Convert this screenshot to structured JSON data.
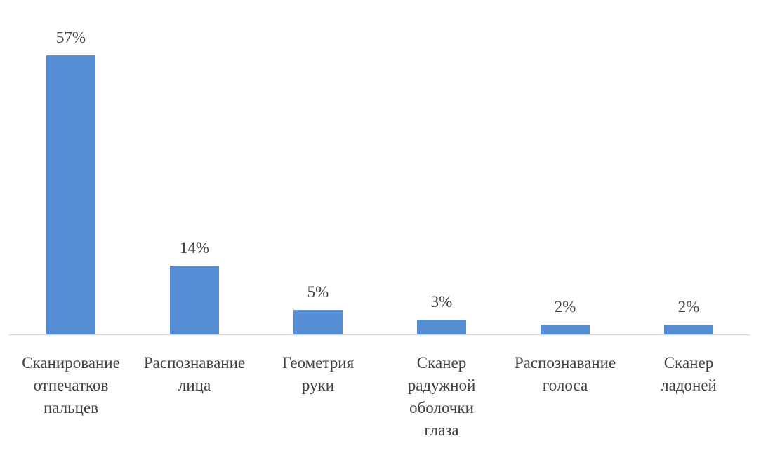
{
  "chart_data": {
    "type": "bar",
    "categories": [
      [
        "Сканирование",
        "отпечатков",
        "пальцев"
      ],
      [
        "Распознавание",
        "лица"
      ],
      [
        "Геометрия",
        "руки"
      ],
      [
        "Сканер",
        "радужной",
        "оболочки",
        "глаза"
      ],
      [
        "Распознавание",
        "голоса"
      ],
      [
        "Сканер",
        "ладоней"
      ]
    ],
    "values": [
      57,
      14,
      5,
      3,
      2,
      2
    ],
    "data_labels": [
      "57%",
      "14%",
      "5%",
      "3%",
      "2%",
      "2%"
    ],
    "title": "",
    "xlabel": "",
    "ylabel": "",
    "ylim": [
      0,
      57
    ],
    "grid": false,
    "legend": "none",
    "bar_color": "#558ed5",
    "axis_color": "#d9d9d9",
    "text_color": "#404040"
  }
}
